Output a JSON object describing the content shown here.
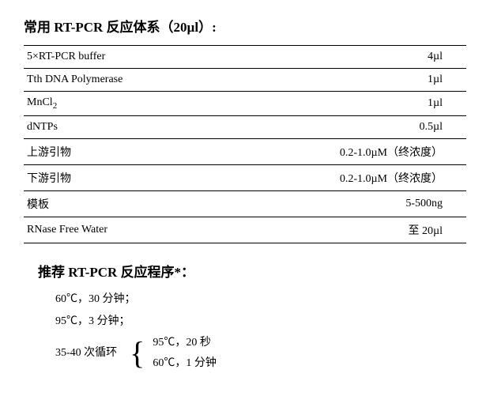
{
  "title1_prefix": "常用 ",
  "title1_latin": "RT-PCR ",
  "title1_suffix": "反应体系（20µl）:",
  "table": {
    "rows": [
      {
        "label": "5×RT-PCR buffer",
        "value": "4µl"
      },
      {
        "label": "Tth DNA Polymerase",
        "value": "1µl"
      },
      {
        "label_html": "MnCl<sub>2</sub>",
        "value": "1µl"
      },
      {
        "label": "dNTPs",
        "value": "0.5µl"
      },
      {
        "label": "上游引物",
        "value": "0.2-1.0µM（终浓度）"
      },
      {
        "label": "下游引物",
        "value": "0.2-1.0µM（终浓度）"
      },
      {
        "label": "模板",
        "value": "5-500ng"
      },
      {
        "label": "RNase Free Water",
        "value": "至 20µl"
      }
    ]
  },
  "title2_prefix": "推荐 ",
  "title2_latin": "RT-PCR ",
  "title2_suffix": "反应程序*：",
  "program": {
    "step1": "60℃，30 分钟；",
    "step2": "95℃，3 分钟；",
    "cycle_label": "35-40 次循环",
    "cycle_step1": "95℃，20 秒",
    "cycle_step2": "60℃，1 分钟"
  }
}
